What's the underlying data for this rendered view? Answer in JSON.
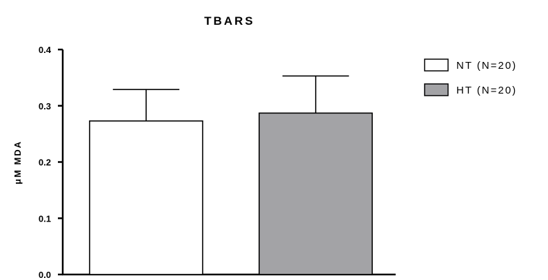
{
  "chart_data": {
    "type": "bar",
    "title": "TBARS",
    "ylabel": "μM MDA",
    "xlabel": "",
    "ylim": [
      0,
      0.4
    ],
    "yticks": [
      0.0,
      0.1,
      0.2,
      0.3,
      0.4
    ],
    "ytick_labels": [
      "0.0",
      "0.1",
      "0.2",
      "0.3",
      "0.4"
    ],
    "grid": false,
    "legend_position": "right",
    "series": [
      {
        "name": "NT (N=20)",
        "value": 0.273,
        "error": 0.056,
        "fill": "#ffffff"
      },
      {
        "name": "HT (N=20)",
        "value": 0.287,
        "error": 0.066,
        "fill": "#a3a3a6"
      }
    ]
  }
}
